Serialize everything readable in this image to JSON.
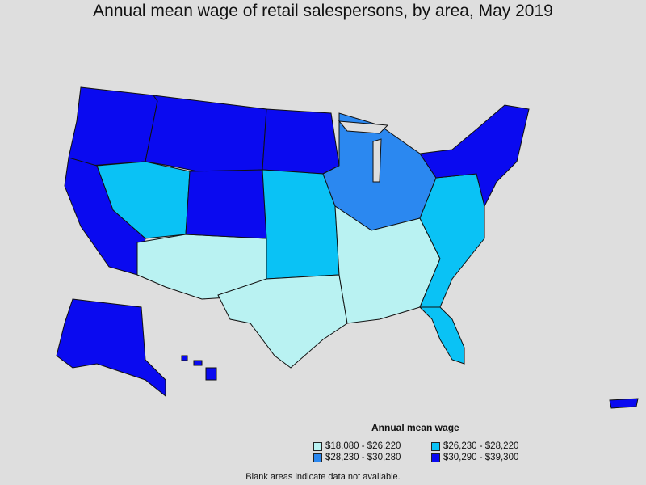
{
  "title": "Annual mean wage of retail salespersons, by area, May 2019",
  "colors": {
    "c1": "#b9f2f2",
    "c2": "#2b88f0",
    "c3": "#0ac2f5",
    "c4": "#0a0af0",
    "border": "#101010",
    "background": "#dedede"
  },
  "legend": {
    "title": "Annual mean wage",
    "items": [
      {
        "label": "$18,080 - $26,220",
        "color_key": "c1"
      },
      {
        "label": "$26,230 - $28,220",
        "color_key": "c3"
      },
      {
        "label": "$28,230 - $30,280",
        "color_key": "c2"
      },
      {
        "label": "$30,290 - $39,300",
        "color_key": "c4"
      }
    ]
  },
  "note": "Blank areas indicate data not available.",
  "regions": [
    {
      "name": "pacific-northwest",
      "class": "c4"
    },
    {
      "name": "northern-rockies",
      "class": "c4"
    },
    {
      "name": "north-central",
      "class": "c4"
    },
    {
      "name": "nevada",
      "class": "c3"
    },
    {
      "name": "california",
      "class": "c4"
    },
    {
      "name": "southwest",
      "class": "c1"
    },
    {
      "name": "colorado",
      "class": "c4"
    },
    {
      "name": "central-plains",
      "class": "c3"
    },
    {
      "name": "texas",
      "class": "c1"
    },
    {
      "name": "midwest",
      "class": "c2"
    },
    {
      "name": "south",
      "class": "c1"
    },
    {
      "name": "southeast",
      "class": "c3"
    },
    {
      "name": "northeast",
      "class": "c4"
    },
    {
      "name": "florida",
      "class": "c3"
    },
    {
      "name": "alaska",
      "class": "c4"
    },
    {
      "name": "hawaii",
      "class": "c4"
    },
    {
      "name": "puerto-rico",
      "class": "c4"
    }
  ]
}
